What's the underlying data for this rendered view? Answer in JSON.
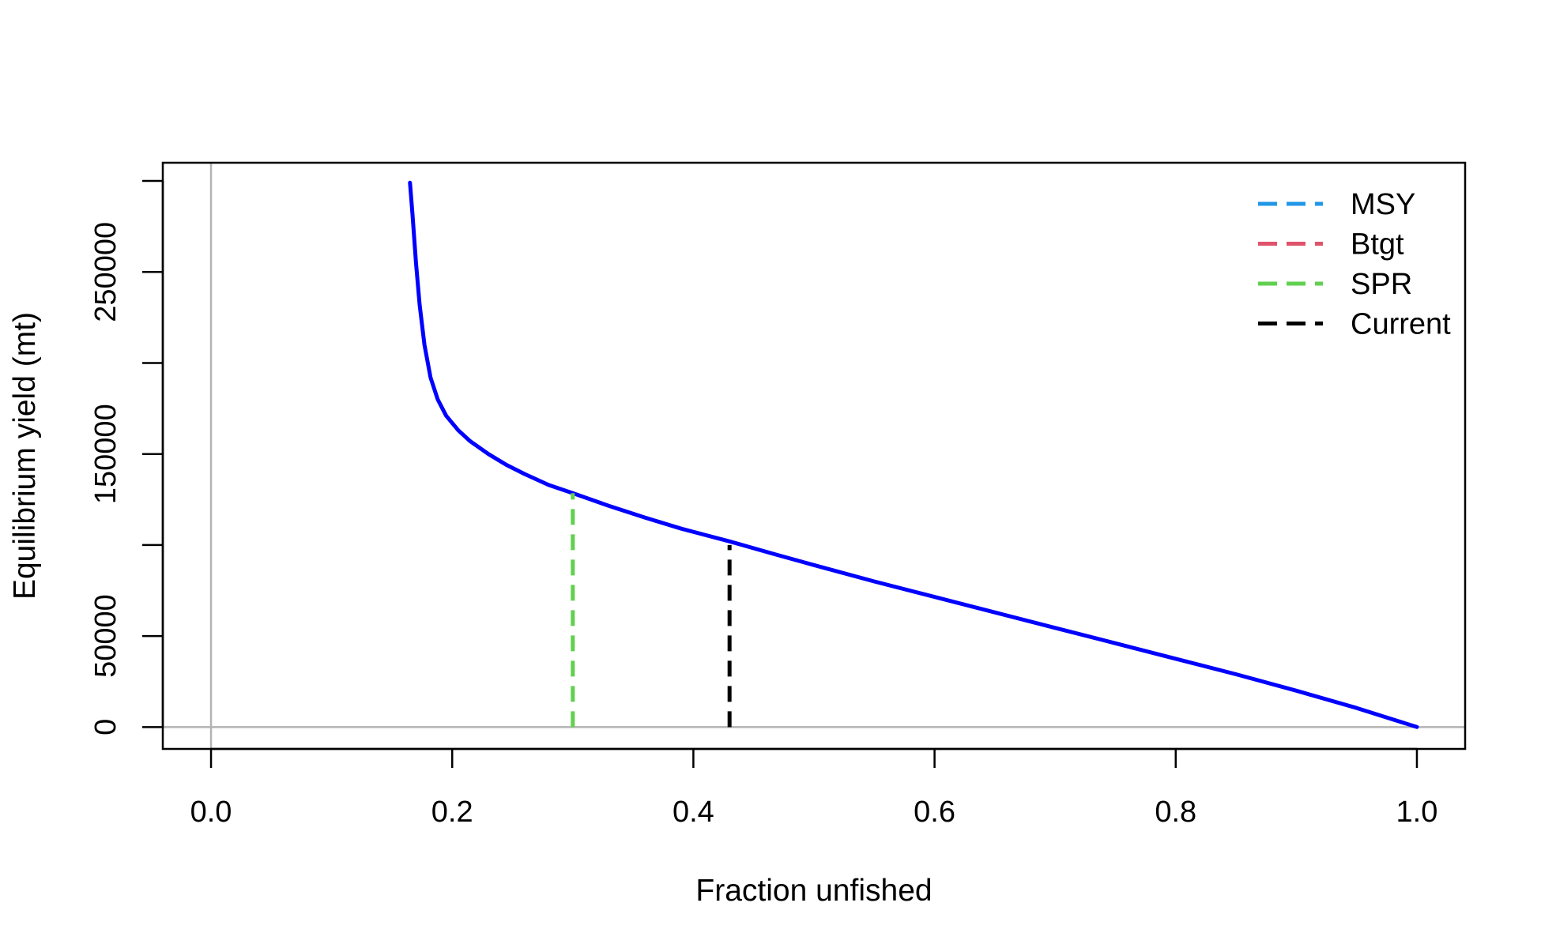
{
  "chart_data": {
    "type": "line",
    "title": "",
    "xlabel": "Fraction unfished",
    "ylabel": "Equilibrium yield (mt)",
    "xlim": [
      -0.04,
      1.04
    ],
    "ylim": [
      -12000,
      310000
    ],
    "x_ticks": [
      0.0,
      0.2,
      0.4,
      0.6,
      0.8,
      1.0
    ],
    "x_tick_labels": [
      "0.0",
      "0.2",
      "0.4",
      "0.6",
      "0.8",
      "1.0"
    ],
    "y_ticks": [
      0,
      50000,
      100000,
      150000,
      200000,
      250000,
      300000
    ],
    "y_tick_labels": [
      "0",
      "50000",
      "",
      "150000",
      "",
      "250000",
      ""
    ],
    "reference_lines": {
      "horizontal": [
        0
      ],
      "vertical": [
        0
      ],
      "color": "#b3b3b3"
    },
    "series": [
      {
        "name": "",
        "color": "#0000ff",
        "x": [
          0.165,
          0.167,
          0.17,
          0.173,
          0.177,
          0.182,
          0.188,
          0.195,
          0.205,
          0.215,
          0.23,
          0.245,
          0.26,
          0.28,
          0.3,
          0.33,
          0.36,
          0.39,
          0.43,
          0.47,
          0.5,
          0.55,
          0.6,
          0.65,
          0.7,
          0.75,
          0.8,
          0.85,
          0.9,
          0.95,
          1.0
        ],
        "y": [
          299000,
          282000,
          255000,
          232000,
          210000,
          192000,
          180000,
          171000,
          163000,
          157000,
          150000,
          144000,
          139000,
          133000,
          128500,
          121500,
          115000,
          109000,
          102000,
          94500,
          89000,
          80000,
          71500,
          63000,
          54500,
          46000,
          37500,
          29000,
          20000,
          10500,
          0
        ]
      }
    ],
    "vlines": [
      {
        "name": "SPR",
        "x": 0.3,
        "y_top": 128500,
        "color": "#61d04f",
        "dashed": true
      },
      {
        "name": "Current",
        "x": 0.43,
        "y_top": 100000,
        "color": "#000000",
        "dashed": true
      }
    ],
    "legend": {
      "position": "top-right",
      "entries": [
        {
          "label": "MSY",
          "color": "#2297e6"
        },
        {
          "label": "Btgt",
          "color": "#df536b"
        },
        {
          "label": "SPR",
          "color": "#61d04f"
        },
        {
          "label": "Current",
          "color": "#000000"
        }
      ]
    },
    "grid": false
  }
}
